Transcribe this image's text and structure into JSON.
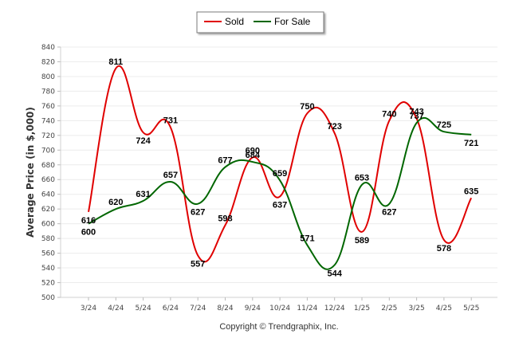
{
  "chart_data": {
    "type": "line",
    "ylabel": "Average Price (in $,000)",
    "ylim": [
      500,
      840
    ],
    "yticks": [
      500,
      520,
      540,
      560,
      580,
      600,
      620,
      640,
      660,
      680,
      700,
      720,
      740,
      760,
      780,
      800,
      820,
      840
    ],
    "categories": [
      "3/24",
      "4/24",
      "5/24",
      "6/24",
      "7/24",
      "8/24",
      "9/24",
      "10/24",
      "11/24",
      "12/24",
      "1/25",
      "2/25",
      "3/25",
      "4/25",
      "5/25"
    ],
    "series": [
      {
        "name": "Sold",
        "color": "#e00000",
        "values": [
          616,
          811,
          724,
          731,
          557,
          598,
          690,
          637,
          750,
          723,
          589,
          740,
          743,
          578,
          635
        ]
      },
      {
        "name": "For Sale",
        "color": "#006600",
        "values": [
          600,
          620,
          631,
          657,
          627,
          677,
          684,
          659,
          571,
          544,
          653,
          627,
          737,
          725,
          721
        ]
      }
    ],
    "legend_position": "top-center",
    "grid": true
  },
  "footer": {
    "copyright": "Copyright © Trendgraphix, Inc."
  }
}
